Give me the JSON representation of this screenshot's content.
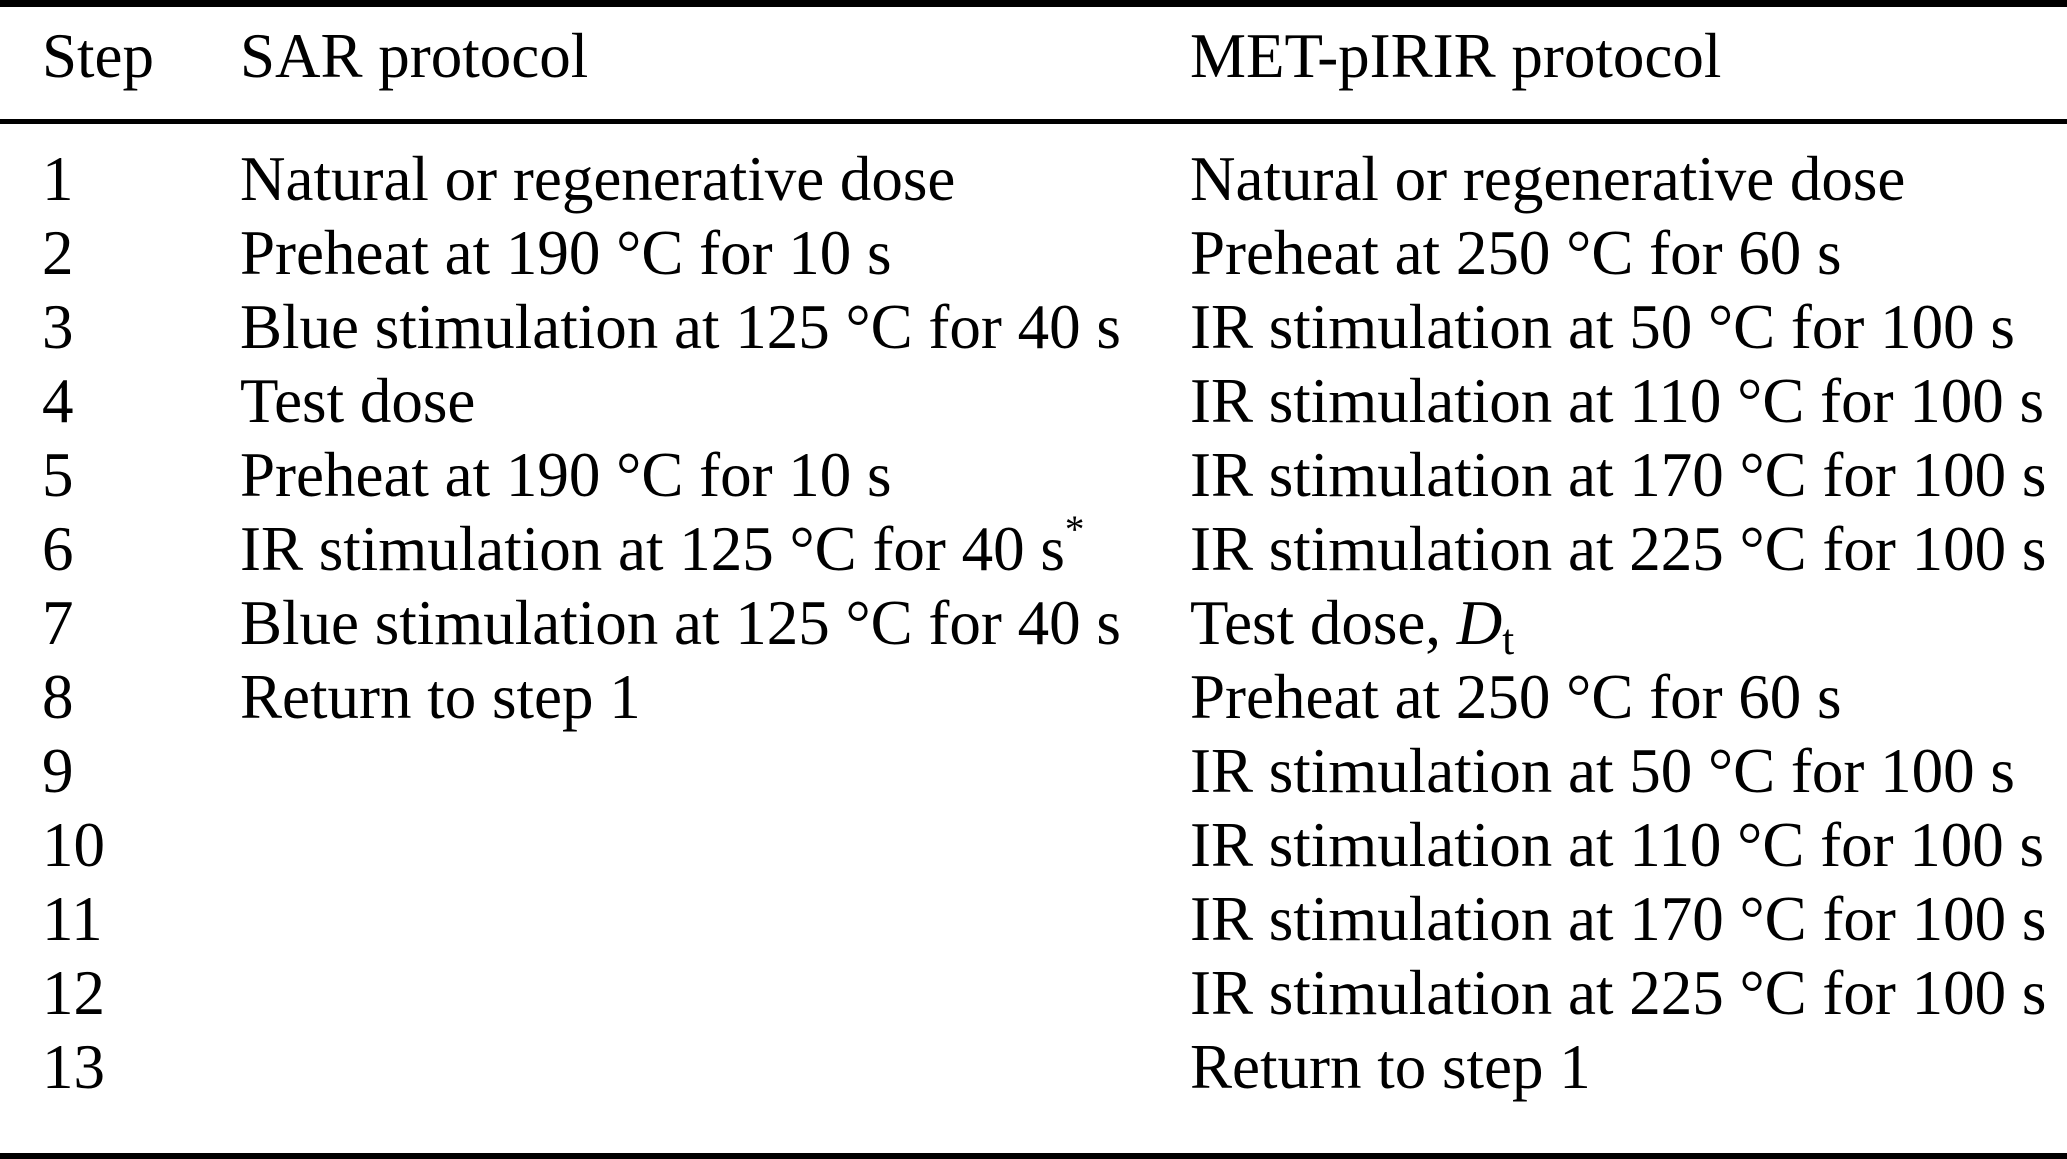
{
  "page": {
    "background_color": "#ffffff",
    "text_color": "#000000",
    "rule_color": "#000000"
  },
  "table": {
    "columns": [
      {
        "label": "Step"
      },
      {
        "label": "SAR protocol"
      },
      {
        "label": "MET-pIRIR protocol"
      }
    ],
    "rows": [
      {
        "step": "1",
        "sar": "Natural or regenerative dose",
        "met": "Natural or regenerative dose"
      },
      {
        "step": "2",
        "sar": "Preheat at 190 °C for 10 s",
        "met": "Preheat at 250 °C for 60 s"
      },
      {
        "step": "3",
        "sar": "Blue stimulation at 125 °C for 40 s",
        "met": "IR stimulation at 50 °C for 100 s"
      },
      {
        "step": "4",
        "sar": "Test dose",
        "met": "IR stimulation at 110 °C for 100 s"
      },
      {
        "step": "5",
        "sar": "Preheat at 190 °C for 10 s",
        "met": "IR stimulation at 170 °C for 100 s"
      },
      {
        "step": "6",
        "sar": {
          "text": "IR stimulation at 125 °C for 40 s",
          "sup": "*"
        },
        "met": "IR stimulation at 225 °C for 100 s"
      },
      {
        "step": "7",
        "sar": "Blue stimulation at 125 °C for 40 s",
        "met": {
          "text": "Test dose, ",
          "variable": "D",
          "subscript": "t"
        }
      },
      {
        "step": "8",
        "sar": "Return to step 1",
        "met": "Preheat at 250 °C for 60 s"
      },
      {
        "step": "9",
        "sar": "",
        "met": "IR stimulation at 50 °C for 100 s"
      },
      {
        "step": "10",
        "sar": "",
        "met": "IR stimulation at 110 °C for 100 s"
      },
      {
        "step": "11",
        "sar": "",
        "met": "IR stimulation at 170 °C for 100 s"
      },
      {
        "step": "12",
        "sar": "",
        "met": "IR stimulation at 225 °C for 100 s"
      },
      {
        "step": "13",
        "sar": "",
        "met": "Return to step 1"
      }
    ]
  }
}
